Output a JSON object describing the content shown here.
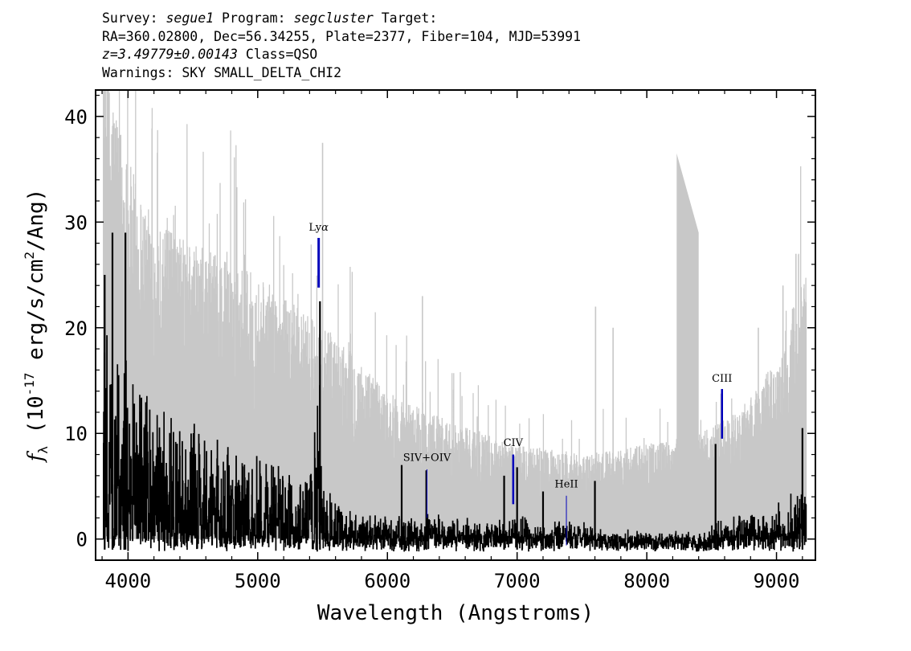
{
  "header": {
    "survey_label": "Survey:",
    "survey": "segue1",
    "program_label": "Program:",
    "program": "segcluster",
    "target_label": "Target:",
    "coords": "RA=360.02800, Dec=56.34255, Plate=2377, Fiber=104, MJD=53991",
    "redshift": "z=3.49779±0.00143",
    "class": "Class=QSO",
    "warnings": "Warnings: SKY SMALL_DELTA_CHI2"
  },
  "chart_data": {
    "type": "line",
    "title": "",
    "xlabel": "Wavelength (Angstroms)",
    "ylabel_prefix": "f",
    "ylabel_sub": "λ",
    "ylabel_open": " (10",
    "ylabel_exp": "-17",
    "ylabel_mid": " erg/s/cm",
    "ylabel_sq": "2",
    "ylabel_close": "/Ang)",
    "xlim": [
      3750,
      9300
    ],
    "ylim": [
      -2,
      42.5
    ],
    "xticks": [
      4000,
      5000,
      6000,
      7000,
      8000,
      9000
    ],
    "yticks": [
      0,
      10,
      20,
      30,
      40
    ],
    "xtick_labels": [
      "4000",
      "5000",
      "6000",
      "7000",
      "8000",
      "9000"
    ],
    "ytick_labels": [
      "0",
      "10",
      "20",
      "30",
      "40"
    ],
    "series": [
      {
        "name": "error",
        "color": "#c8c8c8",
        "envelope": [
          [
            3810,
            45
          ],
          [
            3900,
            42
          ],
          [
            4000,
            36
          ],
          [
            4200,
            30
          ],
          [
            4500,
            28
          ],
          [
            5000,
            25
          ],
          [
            5400,
            21
          ],
          [
            5700,
            18
          ],
          [
            6000,
            14
          ],
          [
            6500,
            11
          ],
          [
            7000,
            9
          ],
          [
            7500,
            8
          ],
          [
            8000,
            9
          ],
          [
            8400,
            10
          ],
          [
            8700,
            12
          ],
          [
            9000,
            17
          ],
          [
            9230,
            26
          ]
        ],
        "spikes": [
          [
            5500,
            37.5
          ],
          [
            6270,
            23
          ],
          [
            7605,
            22
          ],
          [
            7740,
            20
          ],
          [
            8860,
            20
          ],
          [
            9050,
            24
          ],
          [
            9150,
            27
          ]
        ],
        "band": [
          [
            8230,
            36.5
          ],
          [
            8400,
            29
          ]
        ]
      },
      {
        "name": "flux",
        "color": "#000000",
        "envelope": [
          [
            3810,
            23
          ],
          [
            3900,
            20
          ],
          [
            4000,
            17
          ],
          [
            4200,
            14
          ],
          [
            4500,
            11
          ],
          [
            5000,
            8
          ],
          [
            5400,
            6
          ],
          [
            5470,
            22
          ],
          [
            5490,
            6
          ],
          [
            5700,
            3
          ],
          [
            6000,
            2.5
          ],
          [
            6500,
            2
          ],
          [
            7000,
            2
          ],
          [
            7500,
            1.5
          ],
          [
            8000,
            0.5
          ],
          [
            8400,
            0.5
          ],
          [
            8600,
            2
          ],
          [
            9000,
            3
          ],
          [
            9230,
            6
          ]
        ],
        "spikes": [
          [
            3820,
            25
          ],
          [
            3880,
            29
          ],
          [
            3980,
            29
          ],
          [
            5480,
            22.5
          ],
          [
            6110,
            7
          ],
          [
            6300,
            6.5
          ],
          [
            6900,
            6
          ],
          [
            7000,
            6.8
          ],
          [
            7200,
            4.5
          ],
          [
            7600,
            5.5
          ],
          [
            8530,
            9
          ],
          [
            9200,
            10.5
          ]
        ]
      }
    ],
    "emission_lines": [
      {
        "name": "Lyα",
        "label_main": "Ly",
        "label_greek": "α",
        "wavelength": 5470,
        "y0": 23.8,
        "y1": 28.5,
        "label_y": 29.2,
        "width": 3
      },
      {
        "name": "SIV+OIV",
        "label_main": "SIV+OIV",
        "label_greek": "",
        "wavelength": 6305,
        "y0": 2,
        "y1": 6.6,
        "label_y": 7.4,
        "width": 1
      },
      {
        "name": "CIV",
        "label_main": "CIV",
        "label_greek": "",
        "wavelength": 6970,
        "y0": 3.3,
        "y1": 8,
        "label_y": 8.8,
        "width": 2.5
      },
      {
        "name": "HeII",
        "label_main": "HeII",
        "label_greek": "",
        "wavelength": 7380,
        "y0": -0.6,
        "y1": 4.1,
        "label_y": 4.9,
        "width": 1
      },
      {
        "name": "CIII",
        "label_main": "CIII",
        "label_greek": "",
        "wavelength": 8580,
        "y0": 9.5,
        "y1": 14.2,
        "label_y": 14.9,
        "width": 2.5
      }
    ],
    "line_color": "#0000bb",
    "grid": false,
    "legend": "none"
  }
}
